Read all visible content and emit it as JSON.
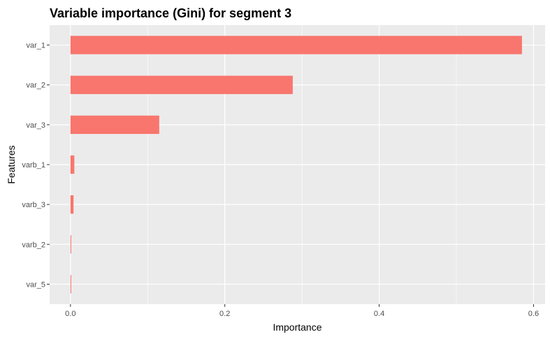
{
  "chart_data": {
    "type": "bar",
    "orientation": "horizontal",
    "title": "Variable importance (Gini) for segment 3",
    "xlabel": "Importance",
    "ylabel": "Features",
    "categories": [
      "var_1",
      "var_2",
      "var_3",
      "varb_1",
      "varb_3",
      "varb_2",
      "var_5"
    ],
    "values": [
      0.585,
      0.288,
      0.115,
      0.005,
      0.004,
      0.001,
      0.001
    ],
    "xlim": [
      -0.027,
      0.615
    ],
    "xticks": [
      0.0,
      0.2,
      0.4,
      0.6
    ],
    "xtick_labels": [
      "0.0",
      "0.2",
      "0.4",
      "0.6"
    ],
    "grid": true,
    "legend": "none",
    "colors": {
      "bar": "#F8766D",
      "panel": "#EBEBEB",
      "grid": "#FFFFFF"
    }
  }
}
